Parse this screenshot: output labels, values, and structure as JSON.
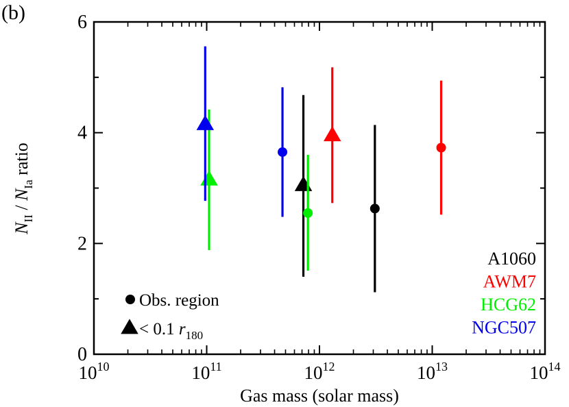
{
  "chart_data": {
    "type": "scatter",
    "panel_label": "(b)",
    "xscale": "log",
    "xlim": [
      10000000000.0,
      100000000000000.0
    ],
    "ylim": [
      0,
      6
    ],
    "xlabel": "Gas mass (solar mass)",
    "ylabel": {
      "n1": "N",
      "s1": "II",
      "sep": " / ",
      "n2": "N",
      "s2": "Ia",
      "rest": " ratio"
    },
    "x_ticks": [
      {
        "value": 10000000000.0,
        "base": "10",
        "exp": "10"
      },
      {
        "value": 100000000000.0,
        "base": "10",
        "exp": "11"
      },
      {
        "value": 1000000000000.0,
        "base": "10",
        "exp": "12"
      },
      {
        "value": 10000000000000.0,
        "base": "10",
        "exp": "13"
      },
      {
        "value": 100000000000000.0,
        "base": "10",
        "exp": "14"
      }
    ],
    "y_ticks": [
      {
        "value": 0,
        "label": "0"
      },
      {
        "value": 2,
        "label": "2"
      },
      {
        "value": 4,
        "label": "4"
      },
      {
        "value": 6,
        "label": "6"
      }
    ],
    "y_minor_step": 1,
    "marker_legend": [
      {
        "marker": "circle",
        "label": "Obs. region"
      },
      {
        "marker": "triangle",
        "label_prefix": "< 0.1 ",
        "label_var": "r",
        "label_sub": "180"
      }
    ],
    "series": [
      {
        "name": "A1060",
        "color": "#000000",
        "points": [
          {
            "marker": "circle",
            "x": 3100000000000.0,
            "y": 2.63,
            "ylow": 1.12,
            "yhigh": 4.14
          },
          {
            "marker": "triangle",
            "x": 720000000000.0,
            "y": 3.05,
            "ylow": 1.4,
            "yhigh": 4.68
          }
        ]
      },
      {
        "name": "AWM7",
        "color": "#ff0000",
        "points": [
          {
            "marker": "circle",
            "x": 12000000000000.0,
            "y": 3.73,
            "ylow": 2.52,
            "yhigh": 4.94
          },
          {
            "marker": "triangle",
            "x": 1300000000000.0,
            "y": 3.95,
            "ylow": 2.73,
            "yhigh": 5.18
          }
        ]
      },
      {
        "name": "HCG62",
        "color": "#00ee00",
        "points": [
          {
            "marker": "circle",
            "x": 790000000000.0,
            "y": 2.55,
            "ylow": 1.51,
            "yhigh": 3.6
          },
          {
            "marker": "triangle",
            "x": 105000000000.0,
            "y": 3.15,
            "ylow": 1.88,
            "yhigh": 4.42
          }
        ]
      },
      {
        "name": "NGC507",
        "color": "#0000ee",
        "points": [
          {
            "marker": "circle",
            "x": 470000000000.0,
            "y": 3.65,
            "ylow": 2.48,
            "yhigh": 4.82
          },
          {
            "marker": "triangle",
            "x": 97000000000.0,
            "y": 4.15,
            "ylow": 2.77,
            "yhigh": 5.56
          }
        ]
      }
    ]
  }
}
